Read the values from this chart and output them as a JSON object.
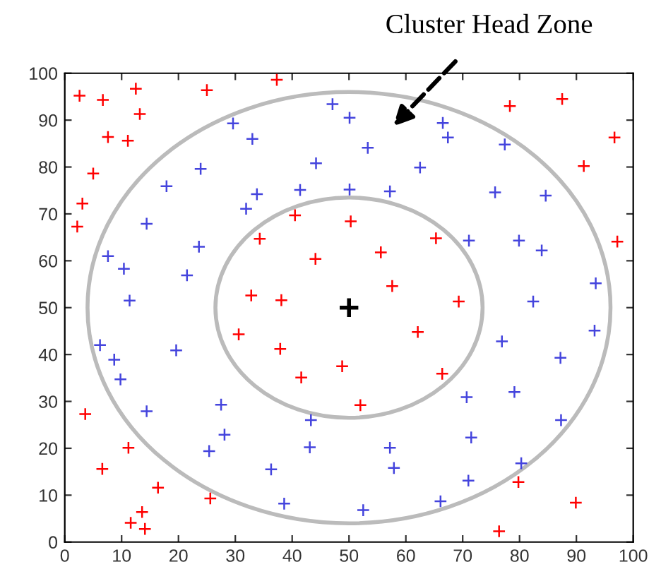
{
  "chart_data": {
    "type": "scatter",
    "xlim": [
      0,
      100
    ],
    "ylim": [
      0,
      100
    ],
    "xticks": [
      0,
      10,
      20,
      30,
      40,
      50,
      60,
      70,
      80,
      90,
      100
    ],
    "yticks": [
      0,
      10,
      20,
      30,
      40,
      50,
      60,
      70,
      80,
      90,
      100
    ],
    "grid": false,
    "legend": false,
    "marker": "cross",
    "annotations": [
      "Cluster Head Zone"
    ],
    "series": [
      {
        "color": "#ff0000",
        "x": [
          2.6,
          6.7,
          12.5,
          13.2,
          7.6,
          11.1,
          5.0,
          3.1,
          2.2,
          25.0,
          37.3,
          40.5,
          34.3,
          44.1,
          32.8,
          38.1,
          78.3,
          87.5,
          96.7,
          91.3,
          97.2,
          50.3,
          65.3,
          55.6,
          57.6,
          69.3,
          3.6,
          11.2,
          6.6,
          16.4,
          13.6,
          11.6,
          14.1,
          25.6,
          30.6,
          37.9,
          41.6,
          48.8,
          62.1,
          66.4,
          52.0,
          79.8,
          89.9,
          76.4
        ],
        "values": [
          95.2,
          94.3,
          96.7,
          91.3,
          86.4,
          85.6,
          78.6,
          72.2,
          67.3,
          96.4,
          98.6,
          69.7,
          64.7,
          60.4,
          52.6,
          51.6,
          93.0,
          94.5,
          86.3,
          80.2,
          64.1,
          68.4,
          64.8,
          61.8,
          54.6,
          51.3,
          27.3,
          20.1,
          15.6,
          11.6,
          6.4,
          4.1,
          2.8,
          9.3,
          44.3,
          41.2,
          35.1,
          37.5,
          44.8,
          35.9,
          29.2,
          12.8,
          8.4,
          2.3
        ]
      },
      {
        "color": "#4444dd",
        "x": [
          47.1,
          29.6,
          33.0,
          23.9,
          17.9,
          44.2,
          33.8,
          41.4,
          31.9,
          14.4,
          23.6,
          7.6,
          10.4,
          21.5,
          11.4,
          50.1,
          66.5,
          67.4,
          53.3,
          77.4,
          62.5,
          50.1,
          57.2,
          75.7,
          84.6,
          71.1,
          79.9,
          83.9,
          93.4,
          82.4,
          6.2,
          8.7,
          9.8,
          19.6,
          14.4,
          27.5,
          28.1,
          25.4,
          36.3,
          38.6,
          43.3,
          43.1,
          76.9,
          93.2,
          87.2,
          70.7,
          79.1,
          87.3,
          71.5,
          57.2,
          57.9,
          80.3,
          71.0,
          66.1,
          52.5
        ],
        "values": [
          93.4,
          89.3,
          86.0,
          79.6,
          75.9,
          80.8,
          74.2,
          75.1,
          71.1,
          67.9,
          63.0,
          61.0,
          58.3,
          56.9,
          51.5,
          90.5,
          89.4,
          86.3,
          84.1,
          84.8,
          79.9,
          75.2,
          74.8,
          74.6,
          73.9,
          64.3,
          64.3,
          62.2,
          55.2,
          51.3,
          42.0,
          38.9,
          34.7,
          40.9,
          27.9,
          29.3,
          22.9,
          19.4,
          15.5,
          8.2,
          26.0,
          20.2,
          42.8,
          45.1,
          39.3,
          30.9,
          32.0,
          26.0,
          22.3,
          20.1,
          15.8,
          16.8,
          13.1,
          8.7,
          6.8
        ]
      },
      {
        "color": "#000000",
        "x": [
          50
        ],
        "values": [
          50
        ]
      }
    ]
  }
}
